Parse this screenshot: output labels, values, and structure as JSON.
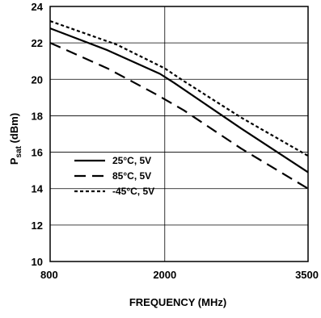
{
  "chart_data": {
    "type": "line",
    "xlabel": "FREQUENCY (MHz)",
    "ylabel_main": "P",
    "ylabel_sub": "sat",
    "ylabel_unit": " (dBm)",
    "xlim": [
      800,
      3500
    ],
    "ylim": [
      10,
      24
    ],
    "x_ticks": [
      800,
      2000,
      3500
    ],
    "x_tick_labels": [
      "800",
      "2000",
      "3500"
    ],
    "y_ticks": [
      10,
      12,
      14,
      16,
      18,
      20,
      22,
      24
    ],
    "y_tick_labels": [
      "10",
      "12",
      "14",
      "16",
      "18",
      "20",
      "22",
      "24"
    ],
    "grid": true,
    "legend_position": "lower-left",
    "series": [
      {
        "name": "25°C, 5V",
        "style": "solid",
        "color": "#000000",
        "points": [
          [
            800,
            22.8
          ],
          [
            1400,
            21.6
          ],
          [
            1950,
            20.3
          ],
          [
            2100,
            19.8
          ],
          [
            2800,
            17.3
          ],
          [
            3500,
            14.9
          ]
        ]
      },
      {
        "name": "85°C, 5V",
        "style": "dashed",
        "color": "#000000",
        "points": [
          [
            800,
            22.0
          ],
          [
            1400,
            20.6
          ],
          [
            1900,
            19.2
          ],
          [
            2200,
            18.3
          ],
          [
            2800,
            16.2
          ],
          [
            3500,
            14.0
          ]
        ]
      },
      {
        "name": "-45°C, 5V",
        "style": "dotted",
        "color": "#000000",
        "points": [
          [
            800,
            23.2
          ],
          [
            1500,
            21.9
          ],
          [
            2000,
            20.6
          ],
          [
            2200,
            19.9
          ],
          [
            2800,
            17.9
          ],
          [
            3500,
            15.8
          ]
        ]
      }
    ]
  }
}
